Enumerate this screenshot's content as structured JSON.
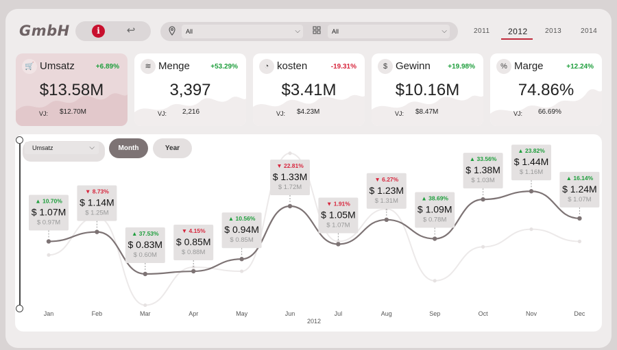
{
  "header": {
    "logo": "GmbH",
    "info_icon": "info-icon",
    "back_icon": "back-arrow-icon",
    "filters": [
      {
        "icon": "location-pin-icon",
        "value": "All"
      },
      {
        "icon": "grid-icon",
        "value": "All"
      }
    ],
    "years": [
      "2011",
      "2012",
      "2013",
      "2014"
    ],
    "selected_year": "2012"
  },
  "kpis": [
    {
      "title": "Umsatz",
      "icon": "cart-icon",
      "delta": "+6.89%",
      "value": "$13.58M",
      "vj_label": "VJ:",
      "vj_value": "$12.70M"
    },
    {
      "title": "Menge",
      "icon": "stack-icon",
      "delta": "+53.29%",
      "value": "3,397",
      "vj_label": "VJ:",
      "vj_value": "2,216"
    },
    {
      "title": "kosten",
      "icon": "pie-icon",
      "delta": "-19.31%",
      "value": "$3.41M",
      "vj_label": "VJ:",
      "vj_value": "$4.23M"
    },
    {
      "title": "Gewinn",
      "icon": "dollar-icon",
      "delta": "+19.98%",
      "value": "$10.16M",
      "vj_label": "VJ:",
      "vj_value": "$8.47M"
    },
    {
      "title": "Marge",
      "icon": "percent-icon",
      "delta": "+12.24%",
      "value": "74.86%",
      "vj_label": "VJ:",
      "vj_value": "66.69%"
    }
  ],
  "controls": {
    "measure": "Umsatz",
    "granularity": [
      "Month",
      "Year"
    ],
    "active_granularity": "Month"
  },
  "colors": {
    "accent": "#c0293b",
    "line": "#7d7374",
    "prior_line": "#ece9e9",
    "positive": "#1e9e3c",
    "negative": "#d7263d"
  },
  "chart_data": {
    "type": "line",
    "xlabel": "2012",
    "categories": [
      "Jan",
      "Feb",
      "Mar",
      "Apr",
      "May",
      "Jun",
      "Jul",
      "Aug",
      "Sep",
      "Oct",
      "Nov",
      "Dec"
    ],
    "series": [
      {
        "name": "Umsatz 2012",
        "values": [
          1.07,
          1.14,
          0.83,
          0.85,
          0.94,
          1.33,
          1.05,
          1.23,
          1.09,
          1.38,
          1.44,
          1.24
        ]
      },
      {
        "name": "Umsatz VJ",
        "values": [
          0.97,
          1.25,
          0.6,
          0.88,
          0.85,
          1.72,
          1.07,
          1.31,
          0.78,
          1.03,
          1.16,
          1.07
        ]
      }
    ],
    "labels": [
      {
        "delta": "▲ 10.70%",
        "dir": "up",
        "value": "$ 1.07M",
        "prior": "$ 0.97M"
      },
      {
        "delta": "▼ 8.73%",
        "dir": "down",
        "value": "$ 1.14M",
        "prior": "$ 1.25M"
      },
      {
        "delta": "▲ 37.53%",
        "dir": "up",
        "value": "$ 0.83M",
        "prior": "$ 0.60M"
      },
      {
        "delta": "▼ 4.15%",
        "dir": "down",
        "value": "$ 0.85M",
        "prior": "$ 0.88M"
      },
      {
        "delta": "▲ 10.56%",
        "dir": "up",
        "value": "$ 0.94M",
        "prior": "$ 0.85M"
      },
      {
        "delta": "▼ 22.81%",
        "dir": "down",
        "value": "$ 1.33M",
        "prior": "$ 1.72M"
      },
      {
        "delta": "▼ 1.91%",
        "dir": "down",
        "value": "$ 1.05M",
        "prior": "$ 1.07M"
      },
      {
        "delta": "▼ 6.27%",
        "dir": "down",
        "value": "$ 1.23M",
        "prior": "$ 1.31M"
      },
      {
        "delta": "▲ 38.69%",
        "dir": "up",
        "value": "$ 1.09M",
        "prior": "$ 0.78M"
      },
      {
        "delta": "▲ 33.56%",
        "dir": "up",
        "value": "$ 1.38M",
        "prior": "$ 1.03M"
      },
      {
        "delta": "▲ 23.82%",
        "dir": "up",
        "value": "$ 1.44M",
        "prior": "$ 1.16M"
      },
      {
        "delta": "▲ 16.14%",
        "dir": "up",
        "value": "$ 1.24M",
        "prior": "$ 1.07M"
      }
    ]
  }
}
